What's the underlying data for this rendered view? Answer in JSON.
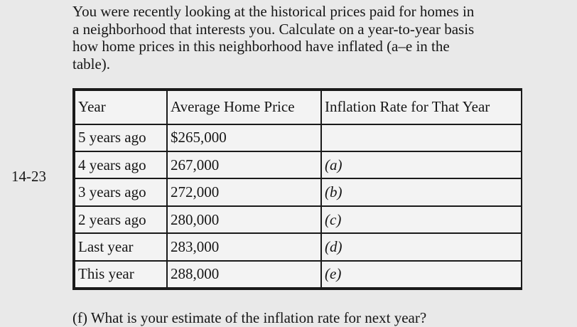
{
  "problem_number": "14-23",
  "intro": {
    "lines": [
      "You were recently looking at the historical prices paid for homes in",
      "a neighborhood that interests you. Calculate on a year-to-year basis",
      "how home prices in this neighborhood have inflated (a–e in the",
      "table)."
    ]
  },
  "table": {
    "headers": [
      "Year",
      "Average Home Price",
      "Inflation Rate for That Year"
    ],
    "rows": [
      {
        "year": "5 years ago",
        "price": "$265,000",
        "rate": ""
      },
      {
        "year": "4 years ago",
        "price": "267,000",
        "rate": "(a)"
      },
      {
        "year": "3 years ago",
        "price": "272,000",
        "rate": "(b)"
      },
      {
        "year": "2 years ago",
        "price": "280,000",
        "rate": "(c)"
      },
      {
        "year": "Last year",
        "price": "283,000",
        "rate": "(d)"
      },
      {
        "year": "This year",
        "price": "288,000",
        "rate": "(e)"
      }
    ]
  },
  "question": "(f) What is your estimate of the inflation rate for next year?"
}
